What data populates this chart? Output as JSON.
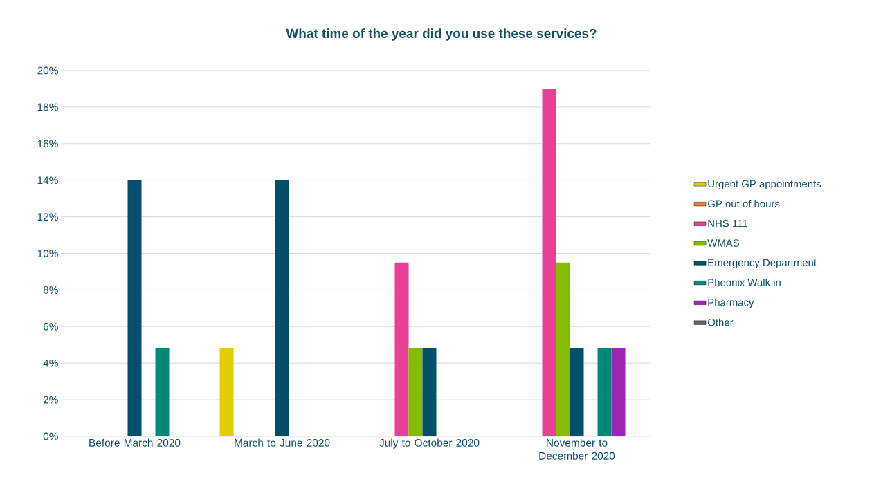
{
  "chart_data": {
    "type": "bar",
    "title": "What time of the year did you use these services?",
    "categories": [
      "Before March 2020",
      "March to June 2020",
      "July to October 2020",
      "November to December 2020"
    ],
    "series": [
      {
        "name": "Urgent GP appointments",
        "color": "#e2cd00",
        "values": [
          0,
          4.8,
          0,
          0
        ]
      },
      {
        "name": "GP out of hours",
        "color": "#ed7d31",
        "values": [
          0,
          0,
          0,
          0
        ]
      },
      {
        "name": "NHS 111",
        "color": "#e84096",
        "values": [
          0,
          0,
          9.5,
          19
        ]
      },
      {
        "name": "WMAS",
        "color": "#86bc00",
        "values": [
          0,
          0,
          4.8,
          9.5
        ]
      },
      {
        "name": "Emergency Department",
        "color": "#004f6b",
        "values": [
          14,
          14,
          4.8,
          4.8
        ]
      },
      {
        "color": "#70ad47",
        "values": [
          0,
          0,
          0,
          0
        ]
      },
      {
        "name": "Pheonix Walk in",
        "color": "#00887a",
        "values": [
          4.8,
          0,
          0,
          4.8
        ]
      },
      {
        "name": "Pharmacy",
        "color": "#9c27b6",
        "values": [
          0,
          0,
          0,
          4.8
        ]
      },
      {
        "name": "Other",
        "color": "#666666",
        "values": [
          0,
          0,
          0,
          0
        ]
      }
    ],
    "ylim": [
      0,
      20
    ],
    "yticks": [
      {
        "value": 0,
        "label": "0%"
      },
      {
        "value": 2,
        "label": "2%"
      },
      {
        "value": 4,
        "label": "4%"
      },
      {
        "value": 6,
        "label": "6%"
      },
      {
        "value": 8,
        "label": "8%"
      },
      {
        "value": 10,
        "label": "10%"
      },
      {
        "value": 12,
        "label": "12%"
      },
      {
        "value": 14,
        "label": "14%"
      },
      {
        "value": 16,
        "label": "16%"
      },
      {
        "value": 18,
        "label": "18%"
      },
      {
        "value": 20,
        "label": "20%"
      }
    ],
    "grid": "y",
    "legend": "right"
  }
}
